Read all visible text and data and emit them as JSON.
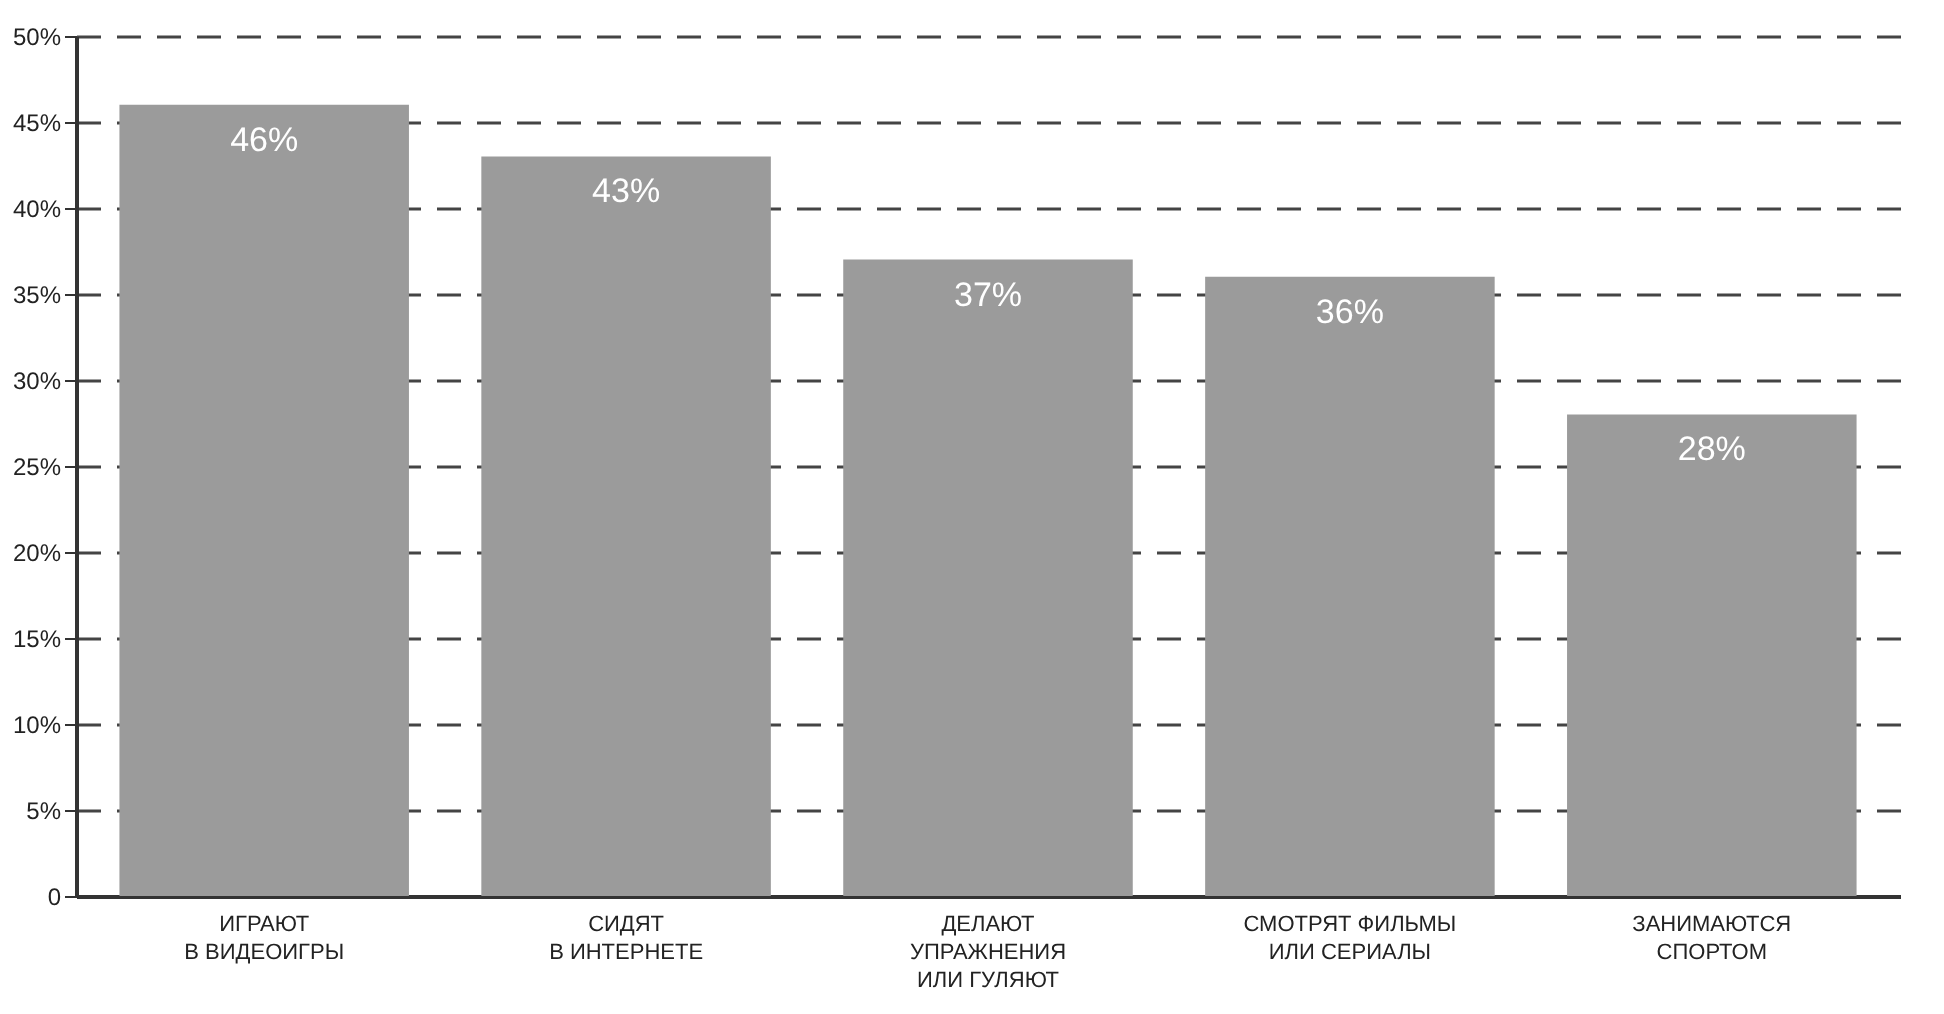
{
  "chart_data": {
    "type": "bar",
    "categories": [
      "ИГРАЮТ\nВ ВИДЕОИГРЫ",
      "СИДЯТ\nВ ИНТЕРНЕТЕ",
      "ДЕЛАЮТ\nУПРАЖНЕНИЯ\nИЛИ ГУЛЯЮТ",
      "СМОТРЯТ ФИЛЬМЫ\nИЛИ СЕРИАЛЫ",
      "ЗАНИМАЮТСЯ\nСПОРТОМ"
    ],
    "values": [
      46,
      43,
      37,
      36,
      28
    ],
    "value_labels": [
      "46%",
      "43%",
      "37%",
      "36%",
      "28%"
    ],
    "color": "#9b9b9b",
    "ylim": [
      0,
      50
    ],
    "yticks": [
      0,
      {
        "value": 5,
        "label": "5%"
      },
      {
        "value": 10,
        "label": "10%"
      },
      {
        "value": 15,
        "label": "15%"
      },
      {
        "value": 20,
        "label": "20%"
      },
      {
        "value": 25,
        "label": "25%"
      },
      {
        "value": 30,
        "label": "30%"
      },
      {
        "value": 35,
        "label": "35%"
      },
      {
        "value": 40,
        "label": "40%"
      },
      {
        "value": 45,
        "label": "45%"
      },
      {
        "value": 50,
        "label": "50%"
      }
    ],
    "grid": "y"
  }
}
